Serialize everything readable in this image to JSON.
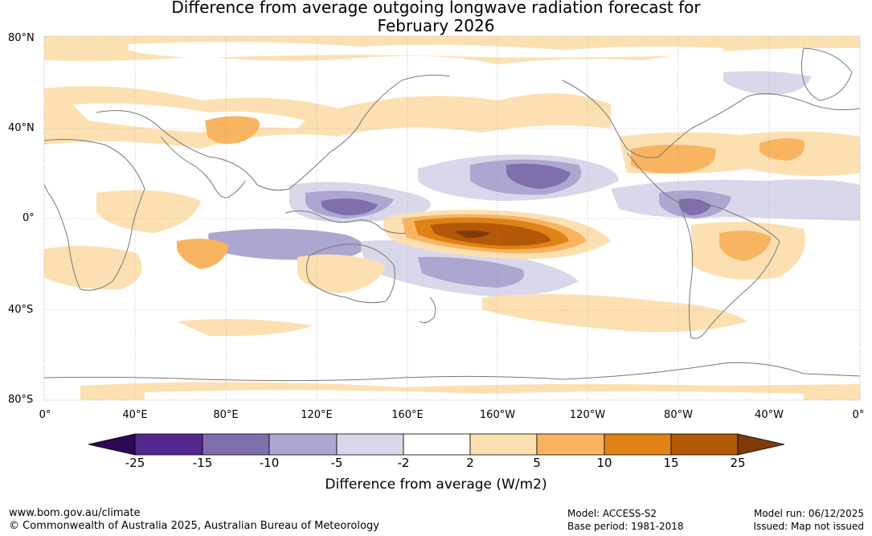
{
  "title": {
    "line1": "Difference from average outgoing longwave radiation forecast for",
    "line2": "February 2026"
  },
  "lat_labels": [
    "80°N",
    "40°N",
    "0°",
    "40°S",
    "80°S"
  ],
  "lon_labels": [
    "0°",
    "40°E",
    "80°E",
    "120°E",
    "160°E",
    "160°W",
    "120°W",
    "80°W",
    "40°W",
    "0°"
  ],
  "colorbar": {
    "ticks": [
      "-25",
      "-15",
      "-10",
      "-5",
      "-2",
      "2",
      "5",
      "10",
      "15",
      "25"
    ],
    "colors": [
      "#2e0854",
      "#54278f",
      "#7f6fad",
      "#aca6d0",
      "#d9d8ea",
      "#ffffff",
      "#fde0b2",
      "#f9b461",
      "#e08216",
      "#b35806",
      "#7f3b08"
    ],
    "label": "Difference from average (W/m2)"
  },
  "footer": {
    "url": "www.bom.gov.au/climate",
    "copyright": "© Commonwealth of Australia 2025, Australian Bureau of Meteorology",
    "model": "Model: ACCESS-S2",
    "base_period": "Base period: 1981-2018",
    "model_run": "Model run: 06/12/2025",
    "issued": "Issued: Map not issued"
  }
}
